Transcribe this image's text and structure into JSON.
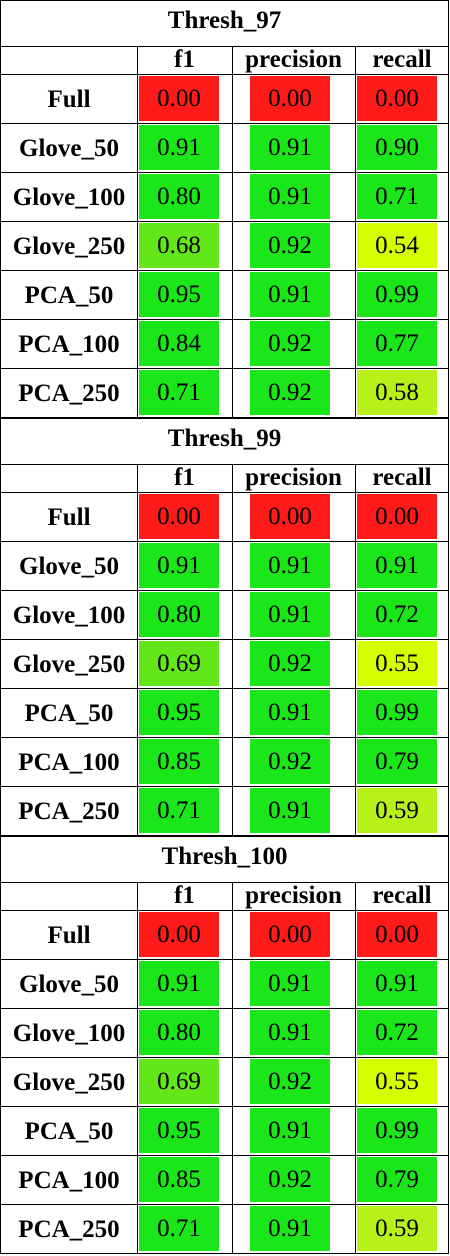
{
  "columns": [
    "f1",
    "precision",
    "recall"
  ],
  "colors": {
    "red": "#ff1a1a",
    "green": "#1ae61a",
    "lightgreen": "#63e61a",
    "yellow": "#d4ff00",
    "yellowgreen": "#b8f01a"
  },
  "blocks": [
    {
      "title": "Thresh_97",
      "rows": [
        {
          "label": "Full",
          "values": [
            "0.00",
            "0.00",
            "0.00"
          ],
          "colors": [
            "red",
            "red",
            "red"
          ]
        },
        {
          "label": "Glove_50",
          "values": [
            "0.91",
            "0.91",
            "0.90"
          ],
          "colors": [
            "green",
            "green",
            "green"
          ]
        },
        {
          "label": "Glove_100",
          "values": [
            "0.80",
            "0.91",
            "0.71"
          ],
          "colors": [
            "green",
            "green",
            "green"
          ]
        },
        {
          "label": "Glove_250",
          "values": [
            "0.68",
            "0.92",
            "0.54"
          ],
          "colors": [
            "lightgreen",
            "green",
            "yellow"
          ]
        },
        {
          "label": "PCA_50",
          "values": [
            "0.95",
            "0.91",
            "0.99"
          ],
          "colors": [
            "green",
            "green",
            "green"
          ]
        },
        {
          "label": "PCA_100",
          "values": [
            "0.84",
            "0.92",
            "0.77"
          ],
          "colors": [
            "green",
            "green",
            "green"
          ]
        },
        {
          "label": "PCA_250",
          "values": [
            "0.71",
            "0.92",
            "0.58"
          ],
          "colors": [
            "green",
            "green",
            "yellowgreen"
          ]
        }
      ]
    },
    {
      "title": "Thresh_99",
      "rows": [
        {
          "label": "Full",
          "values": [
            "0.00",
            "0.00",
            "0.00"
          ],
          "colors": [
            "red",
            "red",
            "red"
          ]
        },
        {
          "label": "Glove_50",
          "values": [
            "0.91",
            "0.91",
            "0.91"
          ],
          "colors": [
            "green",
            "green",
            "green"
          ]
        },
        {
          "label": "Glove_100",
          "values": [
            "0.80",
            "0.91",
            "0.72"
          ],
          "colors": [
            "green",
            "green",
            "green"
          ]
        },
        {
          "label": "Glove_250",
          "values": [
            "0.69",
            "0.92",
            "0.55"
          ],
          "colors": [
            "lightgreen",
            "green",
            "yellow"
          ]
        },
        {
          "label": "PCA_50",
          "values": [
            "0.95",
            "0.91",
            "0.99"
          ],
          "colors": [
            "green",
            "green",
            "green"
          ]
        },
        {
          "label": "PCA_100",
          "values": [
            "0.85",
            "0.92",
            "0.79"
          ],
          "colors": [
            "green",
            "green",
            "green"
          ]
        },
        {
          "label": "PCA_250",
          "values": [
            "0.71",
            "0.91",
            "0.59"
          ],
          "colors": [
            "green",
            "green",
            "yellowgreen"
          ]
        }
      ]
    },
    {
      "title": "Thresh_100",
      "rows": [
        {
          "label": "Full",
          "values": [
            "0.00",
            "0.00",
            "0.00"
          ],
          "colors": [
            "red",
            "red",
            "red"
          ]
        },
        {
          "label": "Glove_50",
          "values": [
            "0.91",
            "0.91",
            "0.91"
          ],
          "colors": [
            "green",
            "green",
            "green"
          ]
        },
        {
          "label": "Glove_100",
          "values": [
            "0.80",
            "0.91",
            "0.72"
          ],
          "colors": [
            "green",
            "green",
            "green"
          ]
        },
        {
          "label": "Glove_250",
          "values": [
            "0.69",
            "0.92",
            "0.55"
          ],
          "colors": [
            "lightgreen",
            "green",
            "yellow"
          ]
        },
        {
          "label": "PCA_50",
          "values": [
            "0.95",
            "0.91",
            "0.99"
          ],
          "colors": [
            "green",
            "green",
            "green"
          ]
        },
        {
          "label": "PCA_100",
          "values": [
            "0.85",
            "0.92",
            "0.79"
          ],
          "colors": [
            "green",
            "green",
            "green"
          ]
        },
        {
          "label": "PCA_250",
          "values": [
            "0.71",
            "0.91",
            "0.59"
          ],
          "colors": [
            "green",
            "green",
            "yellowgreen"
          ]
        }
      ]
    }
  ]
}
